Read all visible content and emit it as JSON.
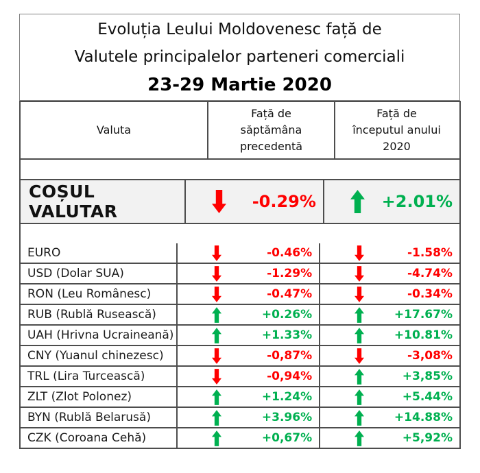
{
  "title": {
    "line1": "Evoluția Leului Moldovenesc față de",
    "line2": "Valutele principalelor parteneri comerciali",
    "date_line": "23-29 Martie 2020"
  },
  "table": {
    "headers": {
      "currency": "Valuta",
      "week": "Față de\nsăptămâna\nprecedentă",
      "ytd": "Față de\nînceputul anului\n2020"
    },
    "basket": {
      "name": "COȘUL VALUTAR",
      "week": {
        "direction": "down",
        "value": "-0.29%"
      },
      "ytd": {
        "direction": "up",
        "value": "+2.01%"
      }
    },
    "rows": [
      {
        "name": "EURO",
        "week": {
          "direction": "down",
          "value": "-0.46%"
        },
        "ytd": {
          "direction": "down",
          "value": "-1.58%"
        }
      },
      {
        "name": "USD (Dolar SUA)",
        "week": {
          "direction": "down",
          "value": "-1.29%"
        },
        "ytd": {
          "direction": "down",
          "value": "-4.74%"
        }
      },
      {
        "name": "RON (Leu Românesc)",
        "week": {
          "direction": "down",
          "value": "-0.47%"
        },
        "ytd": {
          "direction": "down",
          "value": "-0.34%"
        }
      },
      {
        "name": "RUB (Rublă Rusească)",
        "week": {
          "direction": "up",
          "value": "+0.26%"
        },
        "ytd": {
          "direction": "up",
          "value": "+17.67%"
        }
      },
      {
        "name": "UAH (Hrivna Ucraineană)",
        "week": {
          "direction": "up",
          "value": "+1.33%"
        },
        "ytd": {
          "direction": "up",
          "value": "+10.81%"
        }
      },
      {
        "name": "CNY (Yuanul chinezesc)",
        "week": {
          "direction": "down",
          "value": "-0,87%"
        },
        "ytd": {
          "direction": "down",
          "value": "-3,08%"
        }
      },
      {
        "name": "TRL (Lira Turcească)",
        "week": {
          "direction": "down",
          "value": "-0,94%"
        },
        "ytd": {
          "direction": "up",
          "value": "+3,85%"
        }
      },
      {
        "name": "ZLT (Zlot Polonez)",
        "week": {
          "direction": "up",
          "value": "+1.24%"
        },
        "ytd": {
          "direction": "up",
          "value": "+5.44%"
        }
      },
      {
        "name": "BYN (Rublă Belarusă)",
        "week": {
          "direction": "up",
          "value": "+3.96%"
        },
        "ytd": {
          "direction": "up",
          "value": "+14.88%"
        }
      },
      {
        "name": "CZK (Coroana Cehă)",
        "week": {
          "direction": "up",
          "value": "+0,67%"
        },
        "ytd": {
          "direction": "up",
          "value": "+5,92%"
        }
      }
    ]
  },
  "colors": {
    "up": "#00B050",
    "down": "#FF0000",
    "basket_bg": "#F2F2F2",
    "border": "#4d4d4d"
  },
  "chart_data": {
    "type": "table",
    "title": "Evoluția Leului Moldovenesc față de Valutele principalelor parteneri comerciali 23-29 Martie 2020",
    "columns": [
      "Valuta",
      "Față de săptămâna precedentă",
      "Față de începutul anului 2020"
    ],
    "rows": [
      [
        "COȘUL VALUTAR",
        "-0.29%",
        "+2.01%"
      ],
      [
        "EURO",
        "-0.46%",
        "-1.58%"
      ],
      [
        "USD (Dolar SUA)",
        "-1.29%",
        "-4.74%"
      ],
      [
        "RON (Leu Românesc)",
        "-0.47%",
        "-0.34%"
      ],
      [
        "RUB (Rublă Rusească)",
        "+0.26%",
        "+17.67%"
      ],
      [
        "UAH (Hrivna Ucraineană)",
        "+1.33%",
        "+10.81%"
      ],
      [
        "CNY (Yuanul chinezesc)",
        "-0,87%",
        "-3,08%"
      ],
      [
        "TRL (Lira Turcească)",
        "-0,94%",
        "+3,85%"
      ],
      [
        "ZLT (Zlot Polonez)",
        "+1.24%",
        "+5.44%"
      ],
      [
        "BYN (Rublă Belarusă)",
        "+3.96%",
        "+14.88%"
      ],
      [
        "CZK (Coroana Cehă)",
        "+0,67%",
        "+5,92%"
      ]
    ]
  }
}
